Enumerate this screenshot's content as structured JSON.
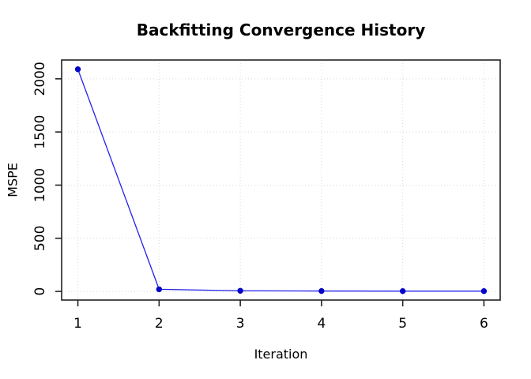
{
  "chart_data": {
    "type": "line",
    "title": "Backfitting Convergence History",
    "xlabel": "Iteration",
    "ylabel": "MSPE",
    "x": [
      1,
      2,
      3,
      4,
      5,
      6
    ],
    "series": [
      {
        "name": "MSPE",
        "values": [
          2090,
          20,
          6,
          4,
          3,
          3
        ]
      }
    ],
    "x_ticks": [
      "1",
      "2",
      "3",
      "4",
      "5",
      "6"
    ],
    "y_ticks": [
      "0",
      "500",
      "1000",
      "1500",
      "2000"
    ],
    "y_tick_values": [
      0,
      500,
      1000,
      1500,
      2000
    ],
    "xlim": [
      0.8,
      6.2
    ],
    "ylim": [
      -81,
      2177
    ],
    "grid": true,
    "grid_style": "dotted",
    "legend": false,
    "marker": "filled-circle",
    "colors": {
      "line": "#2222ee",
      "marker": "#0505c9",
      "grid": "#d9d9d9",
      "axis": "#222222",
      "text": "#000000",
      "background": "#ffffff"
    }
  }
}
